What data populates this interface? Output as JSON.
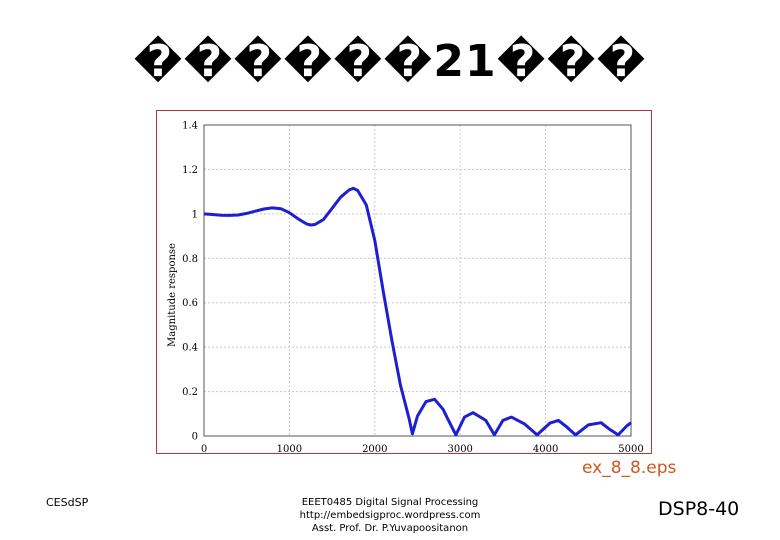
{
  "slide": {
    "title": "������21���",
    "caption": "ex_8_8.eps",
    "footer_left": "CESdSP",
    "footer_center": [
      "EEET0485 Digital Signal Processing",
      "http://embedsigproc.wordpress.com",
      "Asst. Prof. Dr. P.Yuvapoositanon"
    ],
    "page_number": "DSP8-40"
  },
  "chart_data": {
    "type": "line",
    "title": "",
    "xlabel": "",
    "ylabel": "Magnitude response",
    "xlim": [
      0,
      5000
    ],
    "ylim": [
      0,
      1.4
    ],
    "xticks": [
      0,
      1000,
      2000,
      3000,
      4000,
      5000
    ],
    "yticks": [
      0,
      0.2,
      0.4,
      0.6,
      0.8,
      1,
      1.2,
      1.4
    ],
    "grid": true,
    "line_color": "#1e1ed2",
    "series": [
      {
        "x": [
          0,
          100,
          200,
          300,
          400,
          500,
          600,
          700,
          800,
          900,
          1000,
          1100,
          1200,
          1250,
          1300,
          1400,
          1500,
          1600,
          1700,
          1750,
          1800,
          1900,
          2000,
          2100,
          2200,
          2300,
          2400,
          2440,
          2500,
          2600,
          2700,
          2800,
          2850,
          2950,
          3050,
          3150,
          3300,
          3400,
          3500,
          3600,
          3750,
          3900,
          4050,
          4150,
          4250,
          4350,
          4500,
          4650,
          4750,
          4850,
          4950,
          5000
        ],
        "y": [
          1.0,
          0.997,
          0.994,
          0.993,
          0.995,
          1.002,
          1.012,
          1.022,
          1.027,
          1.023,
          1.005,
          0.978,
          0.955,
          0.95,
          0.952,
          0.975,
          1.025,
          1.075,
          1.108,
          1.115,
          1.105,
          1.04,
          0.88,
          0.65,
          0.43,
          0.23,
          0.08,
          0.01,
          0.09,
          0.155,
          0.165,
          0.12,
          0.08,
          0.005,
          0.085,
          0.105,
          0.07,
          0.005,
          0.07,
          0.085,
          0.055,
          0.005,
          0.058,
          0.07,
          0.04,
          0.005,
          0.05,
          0.06,
          0.03,
          0.005,
          0.045,
          0.06
        ]
      }
    ]
  }
}
